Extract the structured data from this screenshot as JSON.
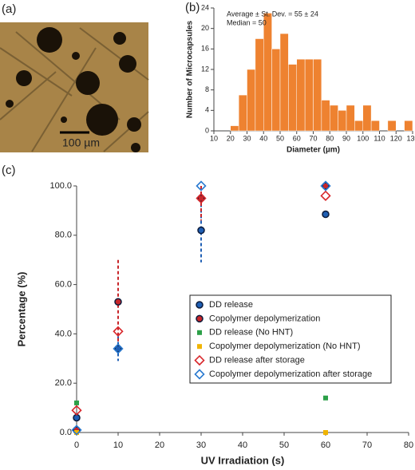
{
  "image_panel": {
    "label": "(a)",
    "scale_bar": "100 µm"
  },
  "chart_data": [
    {
      "type": "histogram",
      "label": "(b)",
      "annotations": [
        "Average ± St. Dev. = 55 ± 24",
        "Median = 50"
      ],
      "x_label": "Diameter (µm)",
      "y_label": "Number of Microcapsules",
      "color": "#ee8230",
      "bins": [
        20,
        25,
        30,
        35,
        40,
        45,
        50,
        55,
        60,
        65,
        70,
        75,
        80,
        85,
        90,
        95,
        100,
        105,
        110,
        115,
        120,
        125,
        130
      ],
      "values": [
        1,
        7,
        12,
        18,
        23,
        16,
        19,
        13,
        14,
        14,
        14,
        6,
        5,
        4,
        5,
        2,
        5,
        2,
        0,
        2,
        0,
        2
      ],
      "xlim": [
        10,
        130
      ],
      "xticks": [
        10,
        20,
        30,
        40,
        50,
        60,
        70,
        80,
        90,
        100,
        110,
        120,
        130
      ],
      "ylim": [
        0,
        24
      ],
      "yticks": [
        0,
        4,
        8,
        12,
        16,
        20,
        24
      ]
    },
    {
      "type": "scatter",
      "label": "(c)",
      "x_label": "UV Irradiation (s)",
      "y_label": "Percentage (%)",
      "xlim": [
        0,
        80
      ],
      "xticks": [
        0,
        10,
        20,
        30,
        40,
        50,
        60,
        70,
        80
      ],
      "ylim": [
        0,
        100
      ],
      "yticks": [
        {
          "value": 0,
          "label": "0.0"
        },
        {
          "value": 20,
          "label": "20.0"
        },
        {
          "value": 40,
          "label": "40.0"
        },
        {
          "value": 60,
          "label": "60.0"
        },
        {
          "value": 80,
          "label": "80.0"
        },
        {
          "value": 100,
          "label": "100.0"
        }
      ],
      "series": [
        {
          "name": "DD release",
          "marker": "circle",
          "color": "#1f5fb4",
          "x": [
            0,
            10,
            30,
            60
          ],
          "values": [
            6,
            34,
            82,
            88.5
          ],
          "errors": [
            null,
            5,
            13,
            null
          ]
        },
        {
          "name": "Copolymer depolymerization",
          "marker": "circle",
          "color": "#c8262a",
          "x": [
            0,
            10,
            30,
            60
          ],
          "values": [
            1,
            53,
            95,
            100
          ],
          "errors": [
            null,
            17,
            9,
            null
          ]
        },
        {
          "name": "DD release (No HNT)",
          "marker": "square",
          "color": "#2ca048",
          "x": [
            0,
            60
          ],
          "values": [
            12,
            14
          ]
        },
        {
          "name": "Copolymer depolymerization (No HNT)",
          "marker": "square",
          "color": "#f0b400",
          "x": [
            0,
            60
          ],
          "values": [
            0,
            0
          ]
        },
        {
          "name": "DD release after storage",
          "marker": "diamond",
          "color": "#d8262a",
          "x": [
            0,
            10,
            30,
            60
          ],
          "values": [
            9,
            41,
            95,
            96
          ]
        },
        {
          "name": "Copolymer depolymerization after storage",
          "marker": "diamond",
          "color": "#2a7ad0",
          "x": [
            0,
            10,
            30,
            60
          ],
          "values": [
            1,
            34,
            100,
            100
          ]
        }
      ]
    }
  ]
}
